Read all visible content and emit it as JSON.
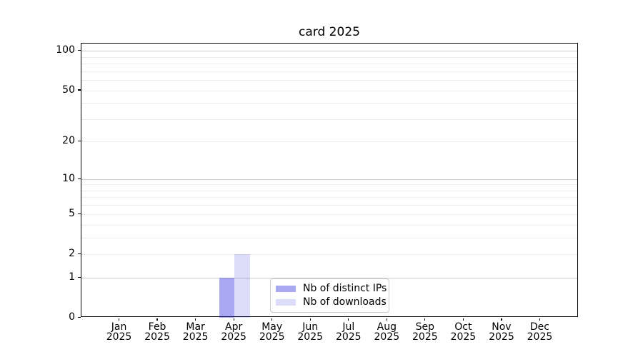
{
  "chart_data": {
    "type": "bar",
    "title": "card 2025",
    "categories": [
      "Jan 2025",
      "Feb 2025",
      "Mar 2025",
      "Apr 2025",
      "May 2025",
      "Jun 2025",
      "Jul 2025",
      "Aug 2025",
      "Sep 2025",
      "Oct 2025",
      "Nov 2025",
      "Dec 2025"
    ],
    "series": [
      {
        "name": "Nb of distinct IPs",
        "color": "rgba(30,30,220,0.38)",
        "values": [
          0,
          0,
          0,
          1,
          0,
          0,
          0,
          0,
          0,
          0,
          0,
          0
        ]
      },
      {
        "name": "Nb of downloads",
        "color": "rgba(30,30,220,0.15)",
        "values": [
          0,
          0,
          0,
          2,
          0,
          0,
          0,
          0,
          0,
          0,
          0,
          0
        ]
      }
    ],
    "xlabel": "",
    "ylabel": "",
    "scale": "log1p",
    "ylim": [
      0,
      115
    ],
    "y_ticks": [
      0,
      1,
      2,
      5,
      10,
      20,
      50,
      100
    ],
    "major_gridlines": [
      1,
      10,
      100
    ],
    "minor_gridlines": [
      2,
      3,
      4,
      5,
      6,
      7,
      8,
      9,
      20,
      30,
      40,
      50,
      60,
      70,
      80,
      90
    ],
    "grid": true,
    "legend_position": "lower center",
    "colors": {
      "distinct_ips_bar": "#acacf4",
      "downloads_bar": "#dcdcf7",
      "major_grid": "#cccccc",
      "minor_grid": "#ececec",
      "axis": "#000000"
    }
  }
}
